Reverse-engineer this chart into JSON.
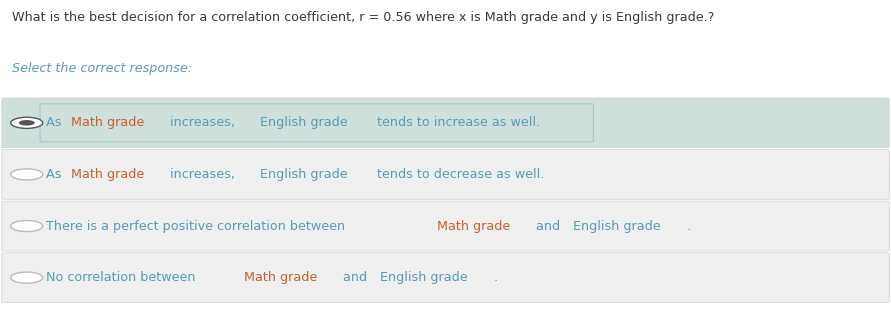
{
  "question": "What is the best decision for a correlation coefficient, r = 0.56 where x is Math grade and y is English grade.?",
  "select_text": "Select the correct response:",
  "options": [
    "As Math grade increases, English grade tends to increase as well.",
    "As Math grade increases, English grade tends to decrease as well.",
    "There is a perfect positive correlation between Math grade and English grade.",
    "No correlation between Math grade and English grade."
  ],
  "correct_index": 0,
  "question_color": "#3a3a3a",
  "select_color": "#5b9ab5",
  "text_color_normal": "#5b9ab5",
  "math_color": "#c86030",
  "english_color": "#5b9ab5",
  "option_selected_bg": "#cfe0dc",
  "option_unselected_bg": "#efefef",
  "bg_color": "#ffffff",
  "radio_fill_selected": "#555555",
  "radio_edge_selected": "#555555",
  "radio_edge_unselected": "#bbbbbb",
  "option_border_color": "#d5d5d5",
  "fig_width": 8.91,
  "fig_height": 3.09,
  "dpi": 100,
  "option_segments": [
    [
      [
        "As ",
        "normal"
      ],
      [
        "Math grade",
        "math"
      ],
      [
        " increases, ",
        "normal"
      ],
      [
        "English grade",
        "english"
      ],
      [
        " tends to increase as well.",
        "normal"
      ]
    ],
    [
      [
        "As ",
        "normal"
      ],
      [
        "Math grade",
        "math"
      ],
      [
        " increases, ",
        "normal"
      ],
      [
        "English grade",
        "english"
      ],
      [
        " tends to decrease as well.",
        "normal"
      ]
    ],
    [
      [
        "There is a perfect positive correlation between ",
        "normal"
      ],
      [
        "Math grade",
        "math"
      ],
      [
        " and ",
        "normal"
      ],
      [
        "English grade",
        "english"
      ],
      [
        ".",
        "normal"
      ]
    ],
    [
      [
        "No correlation between ",
        "normal"
      ],
      [
        "Math grade",
        "math"
      ],
      [
        " and ",
        "normal"
      ],
      [
        "English grade",
        "english"
      ],
      [
        ".",
        "normal"
      ]
    ]
  ]
}
